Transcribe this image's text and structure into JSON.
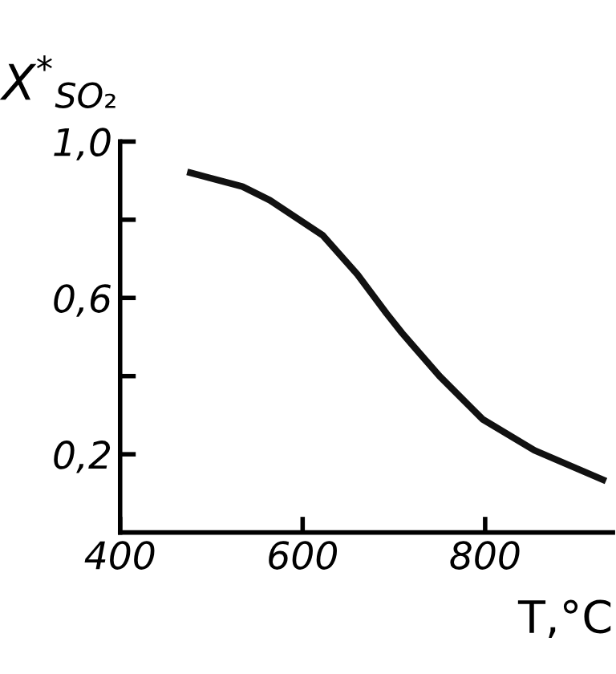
{
  "chart_data": {
    "type": "line",
    "xlabel": "T,°C",
    "ylabel": "X$^{*}$$_{SO₂}$",
    "x": [
      477,
      534,
      564,
      622,
      660,
      692,
      709,
      750,
      797,
      854,
      929
    ],
    "series": [
      {
        "color": "#111111",
        "values": [
          0.92,
          0.885,
          0.85,
          0.76,
          0.66,
          0.56,
          0.51,
          0.4,
          0.29,
          0.21,
          0.135
        ]
      }
    ],
    "xlim": [
      400,
      940
    ],
    "ylim": [
      0,
      1.0
    ],
    "xticks": [
      400,
      600,
      800
    ],
    "yticks": [
      {
        "value": 1.0,
        "label": "1,0"
      },
      {
        "value": 0.8,
        "label": null
      },
      {
        "value": 0.6,
        "label": "0,6"
      },
      {
        "value": 0.4,
        "label": null
      },
      {
        "value": 0.2,
        "label": "0,2"
      }
    ],
    "grid": false,
    "legend": false,
    "marker": "none",
    "line_style": "solid"
  }
}
